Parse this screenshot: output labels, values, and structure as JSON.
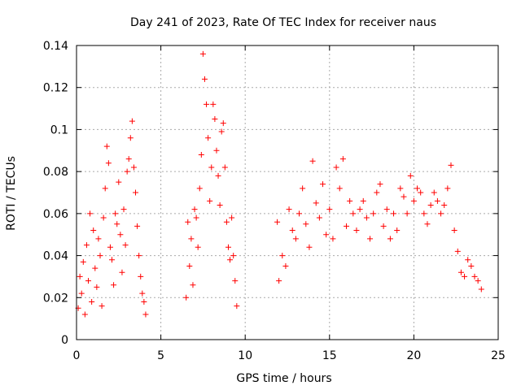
{
  "chart_data": {
    "type": "scatter",
    "title": "Day 241 of 2023, Rate Of TEC Index for receiver naus",
    "xlabel": "GPS time / hours",
    "ylabel": "ROTI / TECUs",
    "xlim": [
      0,
      25
    ],
    "ylim": [
      0,
      0.14
    ],
    "x_ticks": [
      0,
      5,
      10,
      15,
      20,
      25
    ],
    "x_tick_labels": [
      "0",
      "5",
      "10",
      "15",
      "20",
      "25"
    ],
    "y_ticks": [
      0,
      0.02,
      0.04,
      0.06,
      0.08,
      0.1,
      0.12,
      0.14
    ],
    "y_tick_labels": [
      "0",
      "0.02",
      "0.04",
      "0.06",
      "0.08",
      "0.1",
      "0.12",
      "0.14"
    ],
    "grid": true,
    "marker": "plus",
    "color": "#ff0000",
    "series": [
      {
        "points": [
          [
            0.1,
            0.015
          ],
          [
            0.2,
            0.03
          ],
          [
            0.3,
            0.022
          ],
          [
            0.4,
            0.037
          ],
          [
            0.5,
            0.012
          ],
          [
            0.6,
            0.045
          ],
          [
            0.7,
            0.028
          ],
          [
            0.8,
            0.06
          ],
          [
            0.9,
            0.018
          ],
          [
            1.0,
            0.052
          ],
          [
            1.1,
            0.034
          ],
          [
            1.2,
            0.025
          ],
          [
            1.3,
            0.048
          ],
          [
            1.4,
            0.04
          ],
          [
            1.5,
            0.016
          ],
          [
            1.6,
            0.058
          ],
          [
            1.7,
            0.072
          ],
          [
            1.8,
            0.092
          ],
          [
            1.9,
            0.084
          ],
          [
            2.0,
            0.044
          ],
          [
            2.1,
            0.038
          ],
          [
            2.2,
            0.026
          ],
          [
            2.3,
            0.06
          ],
          [
            2.4,
            0.055
          ],
          [
            2.5,
            0.075
          ],
          [
            2.6,
            0.05
          ],
          [
            2.7,
            0.032
          ],
          [
            2.8,
            0.062
          ],
          [
            2.9,
            0.045
          ],
          [
            3.0,
            0.08
          ],
          [
            3.1,
            0.086
          ],
          [
            3.2,
            0.096
          ],
          [
            3.3,
            0.104
          ],
          [
            3.4,
            0.082
          ],
          [
            3.5,
            0.07
          ],
          [
            3.6,
            0.054
          ],
          [
            3.7,
            0.04
          ],
          [
            3.8,
            0.03
          ],
          [
            3.9,
            0.022
          ],
          [
            4.0,
            0.018
          ],
          [
            4.1,
            0.012
          ],
          [
            6.5,
            0.02
          ],
          [
            6.6,
            0.056
          ],
          [
            6.7,
            0.035
          ],
          [
            6.8,
            0.048
          ],
          [
            6.9,
            0.026
          ],
          [
            7.0,
            0.062
          ],
          [
            7.1,
            0.058
          ],
          [
            7.2,
            0.044
          ],
          [
            7.3,
            0.072
          ],
          [
            7.4,
            0.088
          ],
          [
            7.5,
            0.136
          ],
          [
            7.6,
            0.124
          ],
          [
            7.7,
            0.112
          ],
          [
            7.8,
            0.096
          ],
          [
            7.9,
            0.066
          ],
          [
            8.0,
            0.082
          ],
          [
            8.1,
            0.112
          ],
          [
            8.2,
            0.105
          ],
          [
            8.3,
            0.09
          ],
          [
            8.4,
            0.078
          ],
          [
            8.5,
            0.064
          ],
          [
            8.6,
            0.099
          ],
          [
            8.7,
            0.103
          ],
          [
            8.8,
            0.082
          ],
          [
            8.9,
            0.056
          ],
          [
            9.0,
            0.044
          ],
          [
            9.1,
            0.038
          ],
          [
            9.2,
            0.058
          ],
          [
            9.3,
            0.04
          ],
          [
            9.4,
            0.028
          ],
          [
            9.5,
            0.016
          ],
          [
            11.9,
            0.056
          ],
          [
            12.0,
            0.028
          ],
          [
            12.2,
            0.04
          ],
          [
            12.4,
            0.035
          ],
          [
            12.6,
            0.062
          ],
          [
            12.8,
            0.052
          ],
          [
            13.0,
            0.048
          ],
          [
            13.2,
            0.06
          ],
          [
            13.4,
            0.072
          ],
          [
            13.6,
            0.055
          ],
          [
            13.8,
            0.044
          ],
          [
            14.0,
            0.085
          ],
          [
            14.2,
            0.065
          ],
          [
            14.4,
            0.058
          ],
          [
            14.6,
            0.074
          ],
          [
            14.8,
            0.05
          ],
          [
            15.0,
            0.062
          ],
          [
            15.2,
            0.048
          ],
          [
            15.4,
            0.082
          ],
          [
            15.6,
            0.072
          ],
          [
            15.8,
            0.086
          ],
          [
            16.0,
            0.054
          ],
          [
            16.2,
            0.066
          ],
          [
            16.4,
            0.06
          ],
          [
            16.6,
            0.052
          ],
          [
            16.8,
            0.062
          ],
          [
            17.0,
            0.066
          ],
          [
            17.2,
            0.058
          ],
          [
            17.4,
            0.048
          ],
          [
            17.6,
            0.06
          ],
          [
            17.8,
            0.07
          ],
          [
            18.0,
            0.074
          ],
          [
            18.2,
            0.054
          ],
          [
            18.4,
            0.062
          ],
          [
            18.6,
            0.048
          ],
          [
            18.8,
            0.06
          ],
          [
            19.0,
            0.052
          ],
          [
            19.2,
            0.072
          ],
          [
            19.4,
            0.068
          ],
          [
            19.6,
            0.06
          ],
          [
            19.8,
            0.078
          ],
          [
            20.0,
            0.066
          ],
          [
            20.2,
            0.072
          ],
          [
            20.4,
            0.07
          ],
          [
            20.6,
            0.06
          ],
          [
            20.8,
            0.055
          ],
          [
            21.0,
            0.064
          ],
          [
            21.2,
            0.07
          ],
          [
            21.4,
            0.066
          ],
          [
            21.6,
            0.06
          ],
          [
            21.8,
            0.064
          ],
          [
            22.0,
            0.072
          ],
          [
            22.2,
            0.083
          ],
          [
            22.4,
            0.052
          ],
          [
            22.6,
            0.042
          ],
          [
            22.8,
            0.032
          ],
          [
            23.0,
            0.03
          ],
          [
            23.2,
            0.038
          ],
          [
            23.4,
            0.035
          ],
          [
            23.6,
            0.03
          ],
          [
            23.8,
            0.028
          ],
          [
            24.0,
            0.024
          ]
        ]
      }
    ]
  }
}
